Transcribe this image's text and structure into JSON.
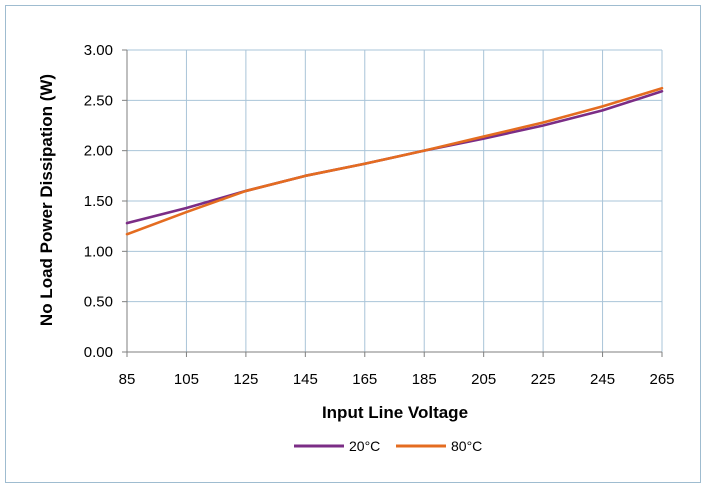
{
  "chart_data": {
    "type": "line",
    "xlabel": "Input Line Voltage",
    "ylabel": "No Load Power Dissipation (W)",
    "x_ticks": [
      "85",
      "105",
      "125",
      "145",
      "165",
      "185",
      "205",
      "225",
      "245",
      "265"
    ],
    "y_ticks": [
      "0.00",
      "0.50",
      "1.00",
      "1.50",
      "2.00",
      "2.50",
      "3.00"
    ],
    "xlim": [
      85,
      265
    ],
    "ylim": [
      0,
      3
    ],
    "grid": true,
    "legend_position": "bottom",
    "x": [
      85,
      105,
      125,
      145,
      165,
      185,
      205,
      225,
      245,
      265
    ],
    "series": [
      {
        "name": "20°C",
        "color": "#7b2d86",
        "values": [
          1.28,
          1.43,
          1.6,
          1.75,
          1.87,
          2.0,
          2.12,
          2.25,
          2.4,
          2.59
        ]
      },
      {
        "name": "80°C",
        "color": "#e46c20",
        "values": [
          1.17,
          1.39,
          1.6,
          1.75,
          1.87,
          2.0,
          2.14,
          2.28,
          2.44,
          2.62
        ]
      }
    ]
  }
}
